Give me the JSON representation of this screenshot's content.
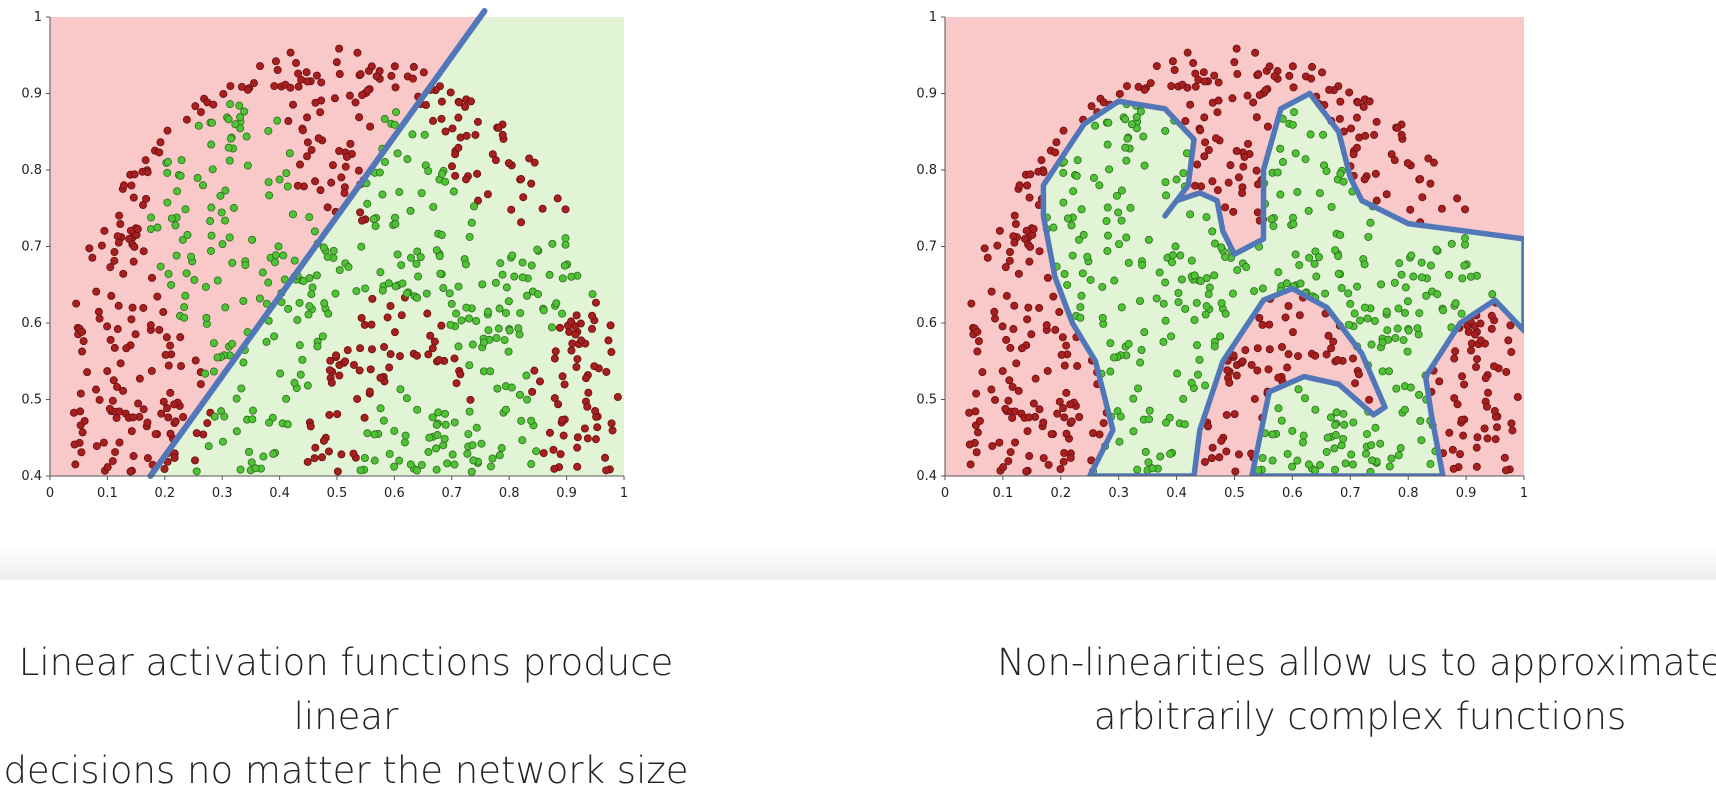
{
  "colors": {
    "red_region": "#f9c9c9",
    "green_region": "#e1f4d6",
    "red_point": "#a71f1f",
    "green_point": "#4ec434",
    "boundary": "#5277b8"
  },
  "chart_data": [
    {
      "type": "scatter",
      "xlim": [
        0,
        1
      ],
      "ylim": [
        0.4,
        1
      ],
      "x_ticks": [
        "0",
        "0.1",
        "0.2",
        "0.3",
        "0.4",
        "0.5",
        "0.6",
        "0.7",
        "0.8",
        "0.9",
        "1"
      ],
      "y_ticks": [
        "0.4",
        "0.5",
        "0.6",
        "0.7",
        "0.8",
        "0.9",
        "1"
      ],
      "grid": false,
      "boundary": {
        "kind": "line",
        "points": [
          [
            0.175,
            0.4
          ],
          [
            0.75,
            1.0
          ]
        ]
      }
    },
    {
      "type": "scatter",
      "xlim": [
        0,
        1
      ],
      "ylim": [
        0.4,
        1
      ],
      "x_ticks": [
        "0",
        "0.1",
        "0.2",
        "0.3",
        "0.4",
        "0.5",
        "0.6",
        "0.7",
        "0.8",
        "0.9",
        "1"
      ],
      "y_ticks": [
        "0.4",
        "0.5",
        "0.6",
        "0.7",
        "0.8",
        "0.9",
        "1"
      ],
      "grid": false,
      "boundary": {
        "kind": "closed-curve",
        "points": [
          [
            0.25,
            0.4
          ],
          [
            0.43,
            0.4
          ],
          [
            0.44,
            0.46
          ],
          [
            0.48,
            0.55
          ],
          [
            0.55,
            0.63
          ],
          [
            0.6,
            0.645
          ],
          [
            0.66,
            0.62
          ],
          [
            0.72,
            0.56
          ],
          [
            0.76,
            0.49
          ],
          [
            0.74,
            0.48
          ],
          [
            0.68,
            0.52
          ],
          [
            0.62,
            0.53
          ],
          [
            0.56,
            0.51
          ],
          [
            0.53,
            0.4
          ],
          [
            0.86,
            0.4
          ],
          [
            0.84,
            0.48
          ],
          [
            0.83,
            0.53
          ],
          [
            0.89,
            0.6
          ],
          [
            0.95,
            0.63
          ],
          [
            1.0,
            0.59
          ],
          [
            1.0,
            0.71
          ],
          [
            0.9,
            0.72
          ],
          [
            0.8,
            0.73
          ],
          [
            0.72,
            0.76
          ],
          [
            0.7,
            0.79
          ],
          [
            0.68,
            0.85
          ],
          [
            0.63,
            0.9
          ],
          [
            0.58,
            0.88
          ],
          [
            0.55,
            0.8
          ],
          [
            0.55,
            0.71
          ],
          [
            0.5,
            0.69
          ],
          [
            0.48,
            0.72
          ],
          [
            0.47,
            0.76
          ],
          [
            0.44,
            0.77
          ],
          [
            0.4,
            0.76
          ],
          [
            0.38,
            0.74
          ],
          [
            0.42,
            0.78
          ],
          [
            0.43,
            0.84
          ],
          [
            0.38,
            0.88
          ],
          [
            0.3,
            0.89
          ],
          [
            0.24,
            0.86
          ],
          [
            0.17,
            0.78
          ],
          [
            0.17,
            0.74
          ],
          [
            0.19,
            0.66
          ],
          [
            0.22,
            0.6
          ],
          [
            0.26,
            0.55
          ],
          [
            0.29,
            0.46
          ]
        ]
      }
    }
  ],
  "captions": {
    "left": [
      "Linear activation functions produce linear",
      "decisions no matter the network size"
    ],
    "right": [
      "Non-linearities allow us to approximate",
      "arbitrarily complex functions"
    ]
  }
}
